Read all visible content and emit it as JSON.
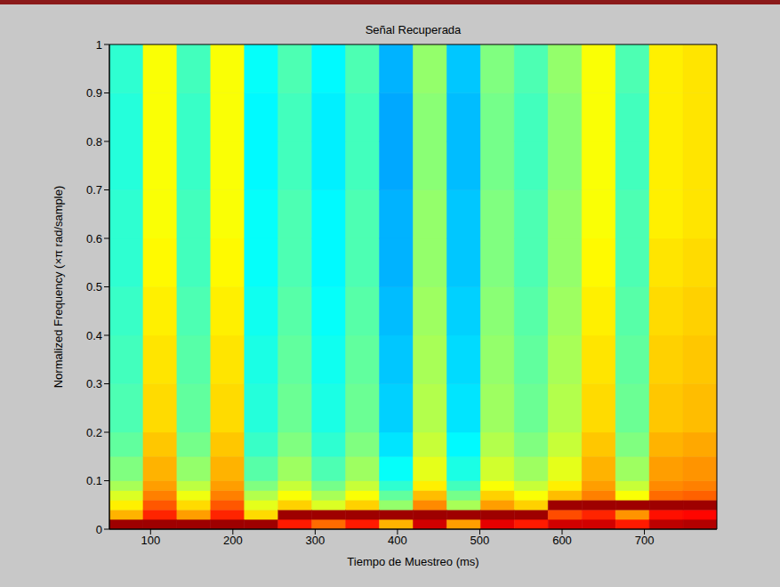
{
  "chart_data": {
    "type": "heatmap",
    "title": "Señal Recuperada",
    "x_label": "Tiempo de Muestreo (ms)",
    "y_label": "Normalized Frequency  (×π rad/sample)",
    "xlim": [
      50,
      788
    ],
    "xticks": [
      100,
      200,
      300,
      400,
      500,
      600,
      700
    ],
    "ylim": [
      0,
      1
    ],
    "yticks": [
      0,
      0.1,
      0.2,
      0.3,
      0.4,
      0.5,
      0.6,
      0.7,
      0.8,
      0.9,
      1
    ],
    "grid": false,
    "x_bins": [
      50,
      91,
      132,
      173,
      214,
      255,
      296,
      337,
      378,
      419,
      460,
      501,
      542,
      583,
      624,
      665,
      706,
      747,
      788
    ],
    "y_bins": [
      0,
      0.02,
      0.04,
      0.06,
      0.08,
      0.1,
      0.15,
      0.2,
      0.3,
      0.4,
      0.5,
      0.6,
      0.7,
      0.8,
      0.9,
      1
    ],
    "zlim": [
      0,
      1
    ],
    "cells": [
      [
        0.97,
        0.7,
        0.64,
        0.59,
        0.54,
        0.5,
        0.47,
        0.45,
        0.44,
        0.43,
        0.42,
        0.42,
        0.41,
        0.41,
        0.42
      ],
      [
        0.97,
        0.84,
        0.79,
        0.75,
        0.72,
        0.7,
        0.68,
        0.66,
        0.65,
        0.64,
        0.63,
        0.62,
        0.62,
        0.62,
        0.62
      ],
      [
        0.97,
        0.72,
        0.66,
        0.61,
        0.56,
        0.52,
        0.49,
        0.47,
        0.46,
        0.45,
        0.44,
        0.44,
        0.43,
        0.43,
        0.44
      ],
      [
        0.97,
        0.84,
        0.79,
        0.75,
        0.72,
        0.7,
        0.68,
        0.66,
        0.65,
        0.64,
        0.63,
        0.62,
        0.62,
        0.62,
        0.62
      ],
      [
        0.97,
        0.66,
        0.6,
        0.55,
        0.5,
        0.46,
        0.43,
        0.41,
        0.4,
        0.39,
        0.38,
        0.38,
        0.37,
        0.37,
        0.38
      ],
      [
        0.85,
        0.97,
        0.67,
        0.62,
        0.57,
        0.53,
        0.5,
        0.48,
        0.47,
        0.46,
        0.45,
        0.45,
        0.44,
        0.44,
        0.45
      ],
      [
        0.77,
        0.97,
        0.59,
        0.54,
        0.49,
        0.45,
        0.42,
        0.4,
        0.39,
        0.38,
        0.37,
        0.37,
        0.36,
        0.36,
        0.37
      ],
      [
        0.85,
        0.97,
        0.67,
        0.62,
        0.57,
        0.53,
        0.5,
        0.48,
        0.47,
        0.46,
        0.45,
        0.45,
        0.44,
        0.44,
        0.45
      ],
      [
        0.7,
        0.97,
        0.52,
        0.47,
        0.42,
        0.38,
        0.35,
        0.33,
        0.32,
        0.31,
        0.3,
        0.3,
        0.29,
        0.29,
        0.3
      ],
      [
        0.92,
        0.97,
        0.74,
        0.69,
        0.64,
        0.6,
        0.57,
        0.55,
        0.54,
        0.53,
        0.52,
        0.52,
        0.51,
        0.51,
        0.52
      ],
      [
        0.72,
        0.97,
        0.54,
        0.49,
        0.44,
        0.4,
        0.37,
        0.35,
        0.34,
        0.33,
        0.32,
        0.32,
        0.31,
        0.31,
        0.32
      ],
      [
        0.9,
        0.97,
        0.72,
        0.67,
        0.62,
        0.58,
        0.55,
        0.53,
        0.52,
        0.51,
        0.5,
        0.5,
        0.49,
        0.49,
        0.5
      ],
      [
        0.85,
        0.97,
        0.67,
        0.62,
        0.57,
        0.53,
        0.5,
        0.48,
        0.47,
        0.46,
        0.45,
        0.45,
        0.44,
        0.44,
        0.45
      ],
      [
        0.92,
        0.8,
        0.97,
        0.69,
        0.64,
        0.6,
        0.57,
        0.55,
        0.54,
        0.53,
        0.52,
        0.52,
        0.51,
        0.51,
        0.52
      ],
      [
        0.92,
        0.84,
        0.97,
        0.75,
        0.72,
        0.7,
        0.68,
        0.66,
        0.65,
        0.64,
        0.63,
        0.62,
        0.62,
        0.62,
        0.62
      ],
      [
        0.85,
        0.73,
        0.97,
        0.62,
        0.57,
        0.53,
        0.5,
        0.48,
        0.47,
        0.46,
        0.45,
        0.45,
        0.44,
        0.44,
        0.45
      ],
      [
        0.94,
        0.86,
        0.97,
        0.77,
        0.74,
        0.72,
        0.7,
        0.68,
        0.67,
        0.66,
        0.65,
        0.64,
        0.64,
        0.64,
        0.64
      ],
      [
        0.95,
        0.87,
        0.97,
        0.78,
        0.75,
        0.73,
        0.71,
        0.69,
        0.68,
        0.67,
        0.66,
        0.65,
        0.65,
        0.65,
        0.65
      ]
    ]
  }
}
